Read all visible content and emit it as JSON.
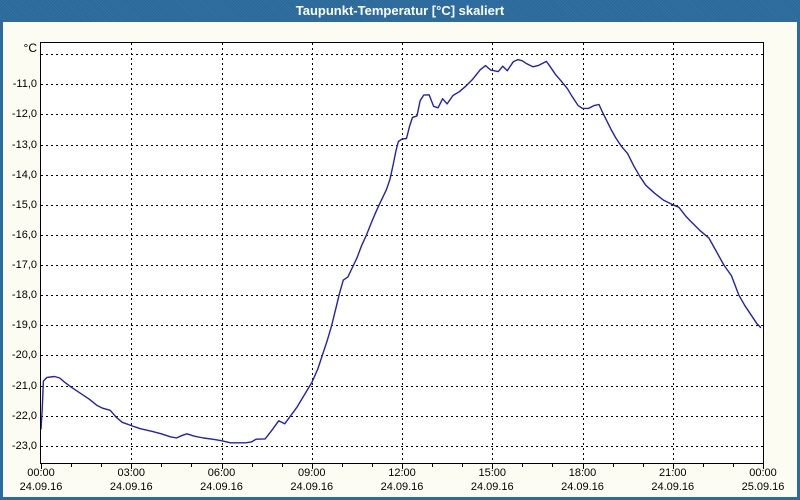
{
  "window": {
    "title": "Taupunkt-Temperatur [°C] skaliert",
    "titlebar_color": "#2A6C9F",
    "background_color": "#FCFCF2",
    "plot_background": "#FFFFFF"
  },
  "chart_data": {
    "type": "line",
    "title": "Taupunkt-Temperatur [°C] skaliert",
    "grid": true,
    "legend": "none",
    "y_axis": {
      "unit_label": "°C",
      "tick_labels": [
        "-11,0",
        "-12,0",
        "-13,0",
        "-14,0",
        "-15,0",
        "-16,0",
        "-17,0",
        "-18,0",
        "-19,0",
        "-20,0",
        "-21,0",
        "-22,0",
        "-23,0"
      ],
      "tick_values": [
        -11,
        -12,
        -13,
        -14,
        -15,
        -16,
        -17,
        -18,
        -19,
        -20,
        -21,
        -22,
        -23
      ],
      "grid_values": [
        -10,
        -11,
        -12,
        -13,
        -14,
        -15,
        -16,
        -17,
        -18,
        -19,
        -20,
        -21,
        -22,
        -23
      ],
      "ylim": [
        -23.57,
        -9.63
      ]
    },
    "x_axis": {
      "xlim_hours": [
        0,
        24
      ],
      "minor_tick_every_hours": 1,
      "major_tick_every_hours": 3,
      "grid_hours": [
        3,
        6,
        9,
        12,
        15,
        18,
        21
      ],
      "ticks": [
        {
          "hour": 0,
          "time": "00:00",
          "date": "24.09.16"
        },
        {
          "hour": 3,
          "time": "03:00",
          "date": "24.09.16"
        },
        {
          "hour": 6,
          "time": "06:00",
          "date": "24.09.16"
        },
        {
          "hour": 9,
          "time": "09:00",
          "date": "24.09.16"
        },
        {
          "hour": 12,
          "time": "12:00",
          "date": "24.09.16"
        },
        {
          "hour": 15,
          "time": "15:00",
          "date": "24.09.16"
        },
        {
          "hour": 18,
          "time": "18:00",
          "date": "24.09.16"
        },
        {
          "hour": 21,
          "time": "21:00",
          "date": "24.09.16"
        },
        {
          "hour": 24,
          "time": "00:00",
          "date": "25.09.16"
        }
      ]
    },
    "series": [
      {
        "name": "Taupunkt-Temperatur",
        "color": "#2222AE",
        "points": [
          [
            0,
            -22.45
          ],
          [
            0.04,
            -21.8
          ],
          [
            0.08,
            -20.85
          ],
          [
            0.2,
            -20.73
          ],
          [
            0.45,
            -20.7
          ],
          [
            0.62,
            -20.75
          ],
          [
            0.8,
            -20.9
          ],
          [
            1,
            -21.05
          ],
          [
            1.3,
            -21.25
          ],
          [
            1.6,
            -21.45
          ],
          [
            1.85,
            -21.65
          ],
          [
            2.05,
            -21.75
          ],
          [
            2.3,
            -21.82
          ],
          [
            2.5,
            -22.05
          ],
          [
            2.7,
            -22.22
          ],
          [
            3,
            -22.33
          ],
          [
            3.3,
            -22.43
          ],
          [
            3.7,
            -22.52
          ],
          [
            4,
            -22.6
          ],
          [
            4.3,
            -22.7
          ],
          [
            4.5,
            -22.74
          ],
          [
            4.7,
            -22.65
          ],
          [
            4.85,
            -22.6
          ],
          [
            5.1,
            -22.68
          ],
          [
            5.4,
            -22.74
          ],
          [
            5.7,
            -22.78
          ],
          [
            6,
            -22.83
          ],
          [
            6.3,
            -22.9
          ],
          [
            6.8,
            -22.9
          ],
          [
            7,
            -22.87
          ],
          [
            7.15,
            -22.78
          ],
          [
            7.45,
            -22.77
          ],
          [
            7.7,
            -22.45
          ],
          [
            7.9,
            -22.17
          ],
          [
            8.1,
            -22.27
          ],
          [
            8.3,
            -22
          ],
          [
            8.5,
            -21.73
          ],
          [
            8.7,
            -21.4
          ],
          [
            8.85,
            -21.15
          ],
          [
            9,
            -20.9
          ],
          [
            9.2,
            -20.45
          ],
          [
            9.35,
            -20
          ],
          [
            9.5,
            -19.55
          ],
          [
            9.65,
            -19.05
          ],
          [
            9.8,
            -18.45
          ],
          [
            9.92,
            -17.95
          ],
          [
            10.05,
            -17.5
          ],
          [
            10.2,
            -17.4
          ],
          [
            10.35,
            -17.08
          ],
          [
            10.5,
            -16.77
          ],
          [
            10.65,
            -16.37
          ],
          [
            10.82,
            -16
          ],
          [
            11,
            -15.55
          ],
          [
            11.15,
            -15.2
          ],
          [
            11.3,
            -14.88
          ],
          [
            11.48,
            -14.5
          ],
          [
            11.6,
            -14.15
          ],
          [
            11.72,
            -13.6
          ],
          [
            11.8,
            -13.2
          ],
          [
            11.88,
            -12.9
          ],
          [
            12,
            -12.82
          ],
          [
            12.15,
            -12.8
          ],
          [
            12.25,
            -12.4
          ],
          [
            12.35,
            -12.1
          ],
          [
            12.5,
            -12.05
          ],
          [
            12.6,
            -11.55
          ],
          [
            12.72,
            -11.36
          ],
          [
            12.9,
            -11.35
          ],
          [
            13.05,
            -11.73
          ],
          [
            13.2,
            -11.78
          ],
          [
            13.35,
            -11.48
          ],
          [
            13.5,
            -11.65
          ],
          [
            13.7,
            -11.37
          ],
          [
            13.9,
            -11.25
          ],
          [
            14.1,
            -11.08
          ],
          [
            14.35,
            -10.83
          ],
          [
            14.6,
            -10.52
          ],
          [
            14.78,
            -10.38
          ],
          [
            14.95,
            -10.53
          ],
          [
            15.2,
            -10.58
          ],
          [
            15.35,
            -10.4
          ],
          [
            15.5,
            -10.55
          ],
          [
            15.7,
            -10.25
          ],
          [
            15.85,
            -10.18
          ],
          [
            16,
            -10.22
          ],
          [
            16.15,
            -10.32
          ],
          [
            16.35,
            -10.42
          ],
          [
            16.55,
            -10.37
          ],
          [
            16.8,
            -10.24
          ],
          [
            16.95,
            -10.45
          ],
          [
            17.1,
            -10.67
          ],
          [
            17.3,
            -10.9
          ],
          [
            17.5,
            -11.15
          ],
          [
            17.65,
            -11.4
          ],
          [
            17.85,
            -11.7
          ],
          [
            18,
            -11.8
          ],
          [
            18.2,
            -11.8
          ],
          [
            18.4,
            -11.7
          ],
          [
            18.55,
            -11.67
          ],
          [
            18.65,
            -11.9
          ],
          [
            18.8,
            -12.2
          ],
          [
            18.95,
            -12.5
          ],
          [
            19.1,
            -12.77
          ],
          [
            19.3,
            -13.07
          ],
          [
            19.5,
            -13.3
          ],
          [
            19.7,
            -13.7
          ],
          [
            19.9,
            -14.05
          ],
          [
            20.1,
            -14.35
          ],
          [
            20.4,
            -14.62
          ],
          [
            20.7,
            -14.85
          ],
          [
            21,
            -15
          ],
          [
            21.2,
            -15.08
          ],
          [
            21.45,
            -15.4
          ],
          [
            21.6,
            -15.55
          ],
          [
            21.9,
            -15.85
          ],
          [
            22.2,
            -16.1
          ],
          [
            22.45,
            -16.55
          ],
          [
            22.7,
            -17
          ],
          [
            22.95,
            -17.35
          ],
          [
            23.2,
            -18
          ],
          [
            23.4,
            -18.35
          ],
          [
            23.6,
            -18.65
          ],
          [
            23.8,
            -18.95
          ],
          [
            23.93,
            -19.08
          ]
        ]
      }
    ]
  }
}
